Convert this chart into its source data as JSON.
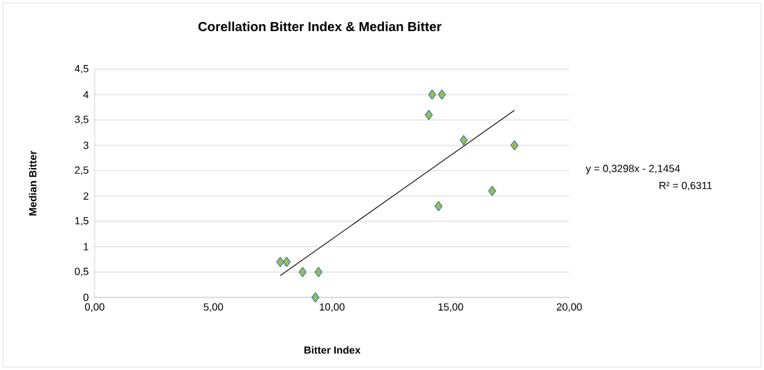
{
  "chart_data": {
    "type": "scatter",
    "title": "Corellation Bitter Index & Median Bitter",
    "xlabel": "Bitter Index",
    "ylabel": "Median Bitter",
    "xlim": [
      0,
      20
    ],
    "xticks": [
      {
        "value": 0,
        "label": "0,00"
      },
      {
        "value": 5,
        "label": "5,00"
      },
      {
        "value": 10,
        "label": "10,00"
      },
      {
        "value": 15,
        "label": "15,00"
      },
      {
        "value": 20,
        "label": "20,00"
      }
    ],
    "ylim": [
      0,
      4.5
    ],
    "yticks": [
      0,
      {
        "value": 0.5,
        "label": "0,5"
      },
      1,
      {
        "value": 1.5,
        "label": "1,5"
      },
      2,
      {
        "value": 2.5,
        "label": "2,5"
      },
      3,
      {
        "value": 3.5,
        "label": "3,5"
      },
      4,
      {
        "value": 4.5,
        "label": "4,5"
      }
    ],
    "grid": "y",
    "annotations": [
      "y = 0,3298x - 2,1454",
      "R² = 0,6311"
    ],
    "series": [
      {
        "type": "scatter",
        "marker": "diamond",
        "color": "#9bbb59",
        "x": [
          7.82,
          8.09,
          8.76,
          9.43,
          9.3,
          14.22,
          14.63,
          14.08,
          15.55,
          17.69,
          16.75,
          14.49
        ],
        "values": [
          0.7,
          0.7,
          0.5,
          0.5,
          0,
          4,
          4,
          3.6,
          3.1,
          3,
          2.1,
          1.8
        ]
      },
      {
        "type": "line",
        "marker": "none",
        "color": "#000000",
        "x": [
          7.82,
          17.69
        ],
        "values": [
          0.43,
          3.69
        ]
      }
    ]
  }
}
